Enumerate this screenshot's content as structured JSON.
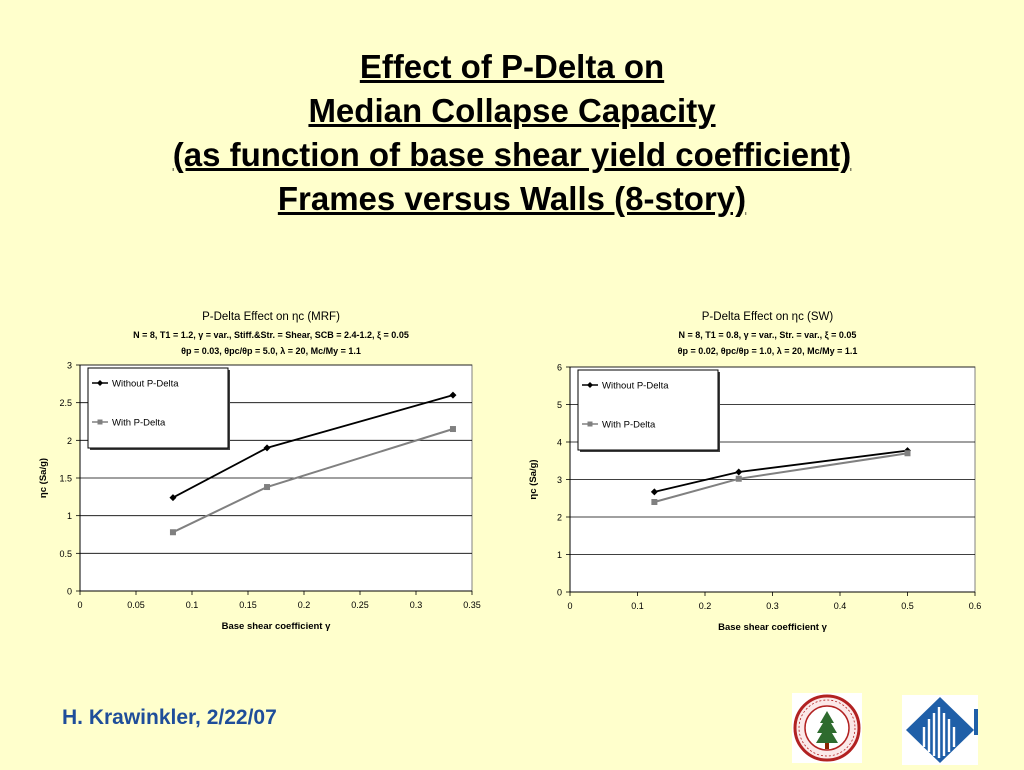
{
  "slide": {
    "title_lines": [
      "Effect of P-Delta on",
      "Median Collapse Capacity",
      "(as function of base shear yield coefficient)",
      "Frames versus Walls (8-story)"
    ],
    "footer": "H. Krawinkler, 2/22/07"
  },
  "logos": [
    "stanford-seal-logo",
    "structure-institution-logo"
  ],
  "colors": {
    "background": "#FFFFCC",
    "footer_text": "#1F4E9A",
    "series_without": "#000000",
    "series_with": "#808080"
  },
  "chart_data": [
    {
      "type": "line",
      "title": "P-Delta Effect on ηc (MRF)",
      "subtitle_1": "N = 8, T1 = 1.2, γ = var., Stiff.&Str. = Shear, SCB = 2.4-1.2, ξ = 0.05",
      "subtitle_2": "θp = 0.03, θpc/θp = 5.0, λ = 20, Mc/My = 1.1",
      "xlabel": "Base shear coefficient γ",
      "ylabel": "ηc (Sa/g)",
      "xlim": [
        0,
        0.35
      ],
      "ylim": [
        0,
        3
      ],
      "x_ticks": [
        "0",
        "0.05",
        "0.1",
        "0.15",
        "0.2",
        "0.25",
        "0.3",
        "0.35"
      ],
      "y_ticks": [
        "0",
        "0.5",
        "1",
        "1.5",
        "2",
        "2.5",
        "3"
      ],
      "grid": true,
      "legend_position": "top-left",
      "series": [
        {
          "name": "Without P-Delta",
          "x": [
            0.083,
            0.167,
            0.333
          ],
          "y": [
            1.24,
            1.9,
            2.6
          ]
        },
        {
          "name": "With P-Delta",
          "x": [
            0.083,
            0.167,
            0.333
          ],
          "y": [
            0.78,
            1.38,
            2.15
          ]
        }
      ]
    },
    {
      "type": "line",
      "title": "P-Delta Effect on ηc (SW)",
      "subtitle_1": "N = 8, T1 = 0.8, γ = var., Str. = var., ξ = 0.05",
      "subtitle_2": "θp = 0.02, θpc/θp = 1.0, λ = 20, Mc/My = 1.1",
      "xlabel": "Base shear coefficient γ",
      "ylabel": "ηc (Sa/g)",
      "xlim": [
        0,
        0.6
      ],
      "ylim": [
        0,
        6
      ],
      "x_ticks": [
        "0",
        "0.1",
        "0.2",
        "0.3",
        "0.4",
        "0.5",
        "0.6"
      ],
      "y_ticks": [
        "0",
        "1",
        "2",
        "3",
        "4",
        "5",
        "6"
      ],
      "grid": true,
      "legend_position": "top-left",
      "series": [
        {
          "name": "Without P-Delta",
          "x": [
            0.125,
            0.25,
            0.5
          ],
          "y": [
            2.67,
            3.2,
            3.77
          ]
        },
        {
          "name": "With P-Delta",
          "x": [
            0.125,
            0.25,
            0.5
          ],
          "y": [
            2.4,
            3.02,
            3.7
          ]
        }
      ]
    }
  ]
}
